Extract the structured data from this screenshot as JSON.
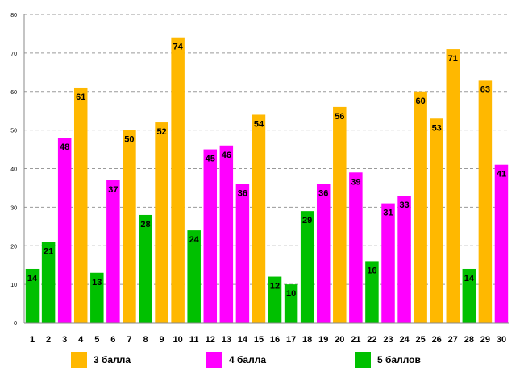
{
  "chart_data": {
    "type": "bar",
    "title": "",
    "xlabel": "",
    "ylabel": "",
    "ylim": [
      0,
      80
    ],
    "yticks": [
      0,
      10,
      20,
      30,
      40,
      50,
      60,
      70,
      80
    ],
    "grid": "horizontal-dashed",
    "categories": [
      "1",
      "2",
      "3",
      "4",
      "5",
      "6",
      "7",
      "8",
      "9",
      "10",
      "11",
      "12",
      "13",
      "14",
      "15",
      "16",
      "17",
      "18",
      "19",
      "20",
      "21",
      "22",
      "23",
      "24",
      "25",
      "26",
      "27",
      "28",
      "29",
      "30"
    ],
    "values": [
      14,
      21,
      48,
      61,
      13,
      37,
      50,
      28,
      52,
      74,
      24,
      45,
      46,
      36,
      54,
      12,
      10,
      29,
      36,
      56,
      39,
      16,
      31,
      33,
      60,
      53,
      71,
      14,
      63,
      41
    ],
    "groups": [
      "5 баллов",
      "5 баллов",
      "4 балла",
      "3 балла",
      "5 баллов",
      "4 балла",
      "3 балла",
      "5 баллов",
      "3 балла",
      "3 балла",
      "5 баллов",
      "4 балла",
      "4 балла",
      "4 балла",
      "3 балла",
      "5 баллов",
      "5 баллов",
      "5 баллов",
      "4 балла",
      "3 балла",
      "4 балла",
      "5 баллов",
      "4 балла",
      "4 балла",
      "3 балла",
      "3 балла",
      "3 балла",
      "5 баллов",
      "3 балла",
      "4 балла"
    ],
    "legend": [
      {
        "name": "3 балла",
        "color": "#FFB800"
      },
      {
        "name": "4 балла",
        "color": "#FF00FF"
      },
      {
        "name": "5 баллов",
        "color": "#00C000"
      }
    ],
    "legend_position": "bottom"
  }
}
